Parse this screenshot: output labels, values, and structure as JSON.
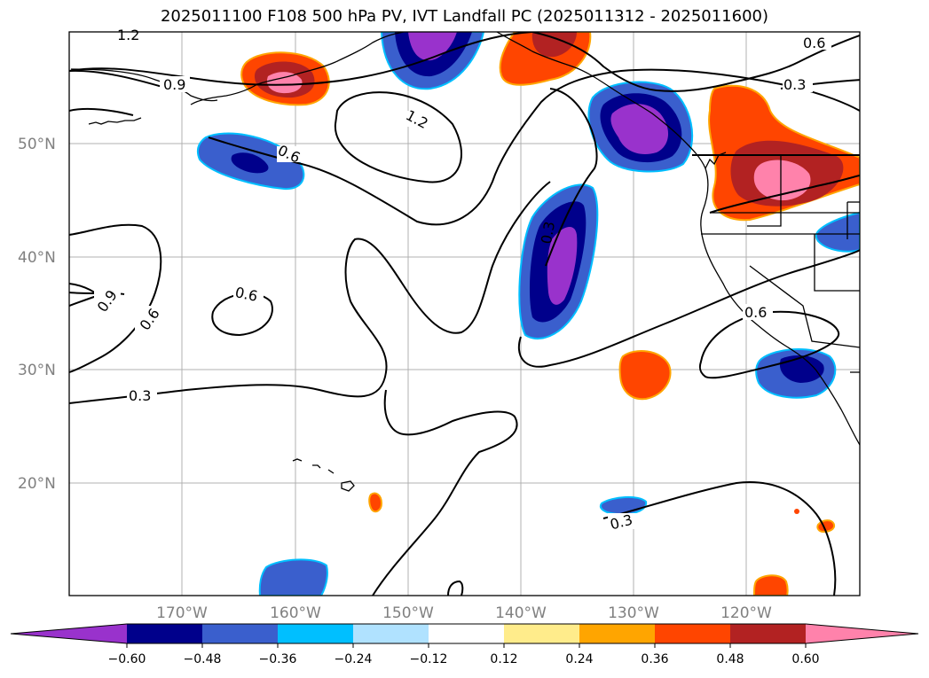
{
  "title": "2025011100 F108 500 hPa PV, IVT Landfall PC (2025011312 - 2025011600)",
  "map": {
    "lat_labels": [
      "50°N",
      "40°N",
      "30°N",
      "20°N"
    ],
    "lon_labels": [
      "170°W",
      "160°W",
      "150°W",
      "140°W",
      "130°W",
      "120°W"
    ],
    "contour_labels": [
      "1.2",
      "0.9",
      "1.2",
      "0.6",
      "0.6",
      "0.3",
      "0.3",
      "0.9",
      "0.6",
      "0.6",
      "0.3",
      "0.6",
      "0.3"
    ]
  },
  "colorbar": {
    "ticks": [
      "−0.60",
      "−0.48",
      "−0.36",
      "−0.24",
      "−0.12",
      "0.12",
      "0.24",
      "0.36",
      "0.48",
      "0.60"
    ],
    "colors": [
      "#9932CC",
      "#00008B",
      "#3A5FCD",
      "#00BFFF",
      "#B0E2FF",
      "#FFFFFF",
      "#FFEC8B",
      "#FFA500",
      "#FF4500",
      "#B22222",
      "#FF82AB"
    ]
  }
}
